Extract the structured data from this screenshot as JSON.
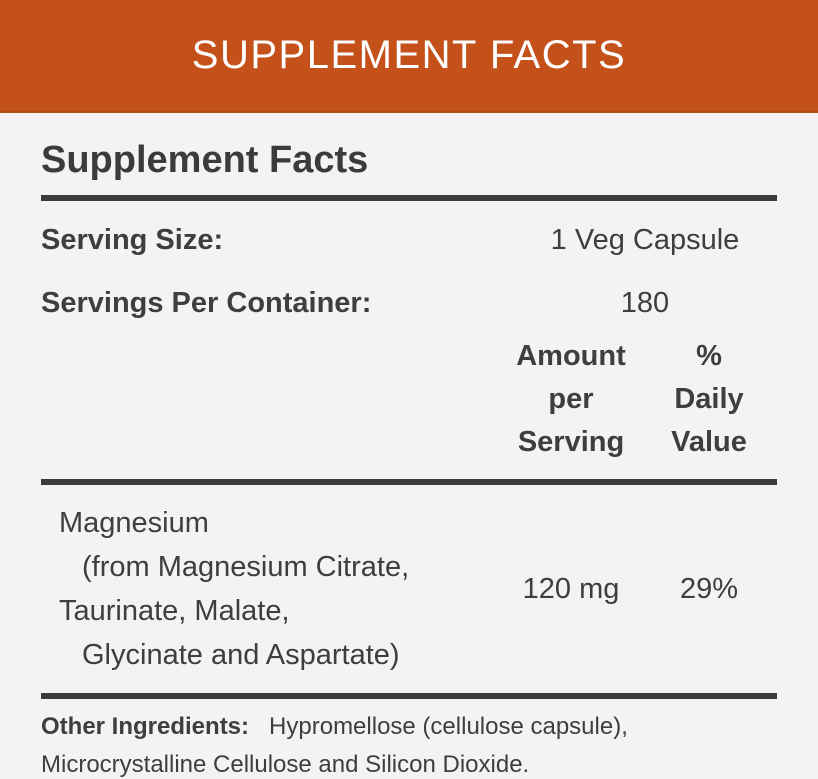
{
  "banner": {
    "title": "SUPPLEMENT FACTS"
  },
  "panel": {
    "title": "Supplement Facts",
    "serving_rows": [
      {
        "label": "Serving Size:",
        "value": "1 Veg Capsule"
      },
      {
        "label": "Servings Per Container:",
        "value": "180"
      }
    ],
    "columns": {
      "amount": [
        "Amount",
        "per",
        "Serving"
      ],
      "daily_value": [
        "% Daily",
        "Value"
      ]
    },
    "ingredients": [
      {
        "name_lines": [
          "Magnesium",
          "(from Magnesium Citrate,",
          "Taurinate, Malate,",
          "Glycinate and Aspartate)"
        ],
        "amount": "120 mg",
        "daily_value": "29%"
      }
    ],
    "other_ingredients": {
      "label": "Other Ingredients:",
      "text": "Hypromellose (cellulose capsule), Microcrystalline Cellulose and Silicon Dioxide."
    }
  },
  "colors": {
    "banner_bg": "#c4511a",
    "banner_text": "#ffffff",
    "panel_bg": "#f3f2f4",
    "text": "#3e3e3e",
    "rule": "#3a3a3a"
  }
}
